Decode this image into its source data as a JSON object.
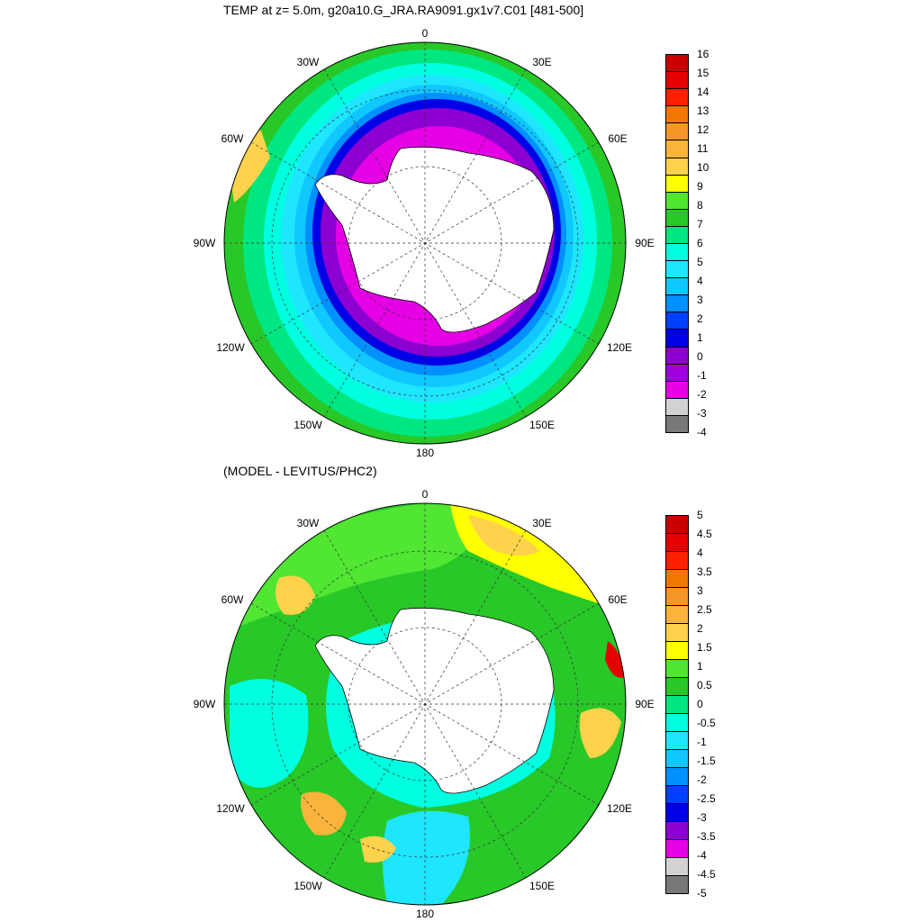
{
  "top_panel": {
    "title": "TEMP at z=   5.0m, g20a10.G_JRA.RA9091.gx1v7.C01 [481-500]",
    "lon_labels": [
      "0",
      "30E",
      "60E",
      "90E",
      "120E",
      "150E",
      "180",
      "150W",
      "120W",
      "90W",
      "60W",
      "30W"
    ],
    "colorbar": {
      "labels": [
        "16",
        "15",
        "14",
        "13",
        "12",
        "11",
        "10",
        "9",
        "8",
        "7",
        "6",
        "5",
        "4",
        "3",
        "2",
        "1",
        "0",
        "-1",
        "-2",
        "-3",
        "-4"
      ],
      "colors": [
        "#c80000",
        "#e60000",
        "#ff2000",
        "#f07800",
        "#f59628",
        "#fab43c",
        "#ffd24b",
        "#ffff00",
        "#50e632",
        "#28c828",
        "#00e680",
        "#00ffe0",
        "#1ee6ff",
        "#10c8ff",
        "#0090ff",
        "#0040ff",
        "#0000e6",
        "#8c00d2",
        "#a000dc",
        "#e600e6",
        "#d2d2d2",
        "#787878"
      ]
    }
  },
  "bottom_panel": {
    "title": "(MODEL - LEVITUS/PHC2)",
    "lon_labels": [
      "0",
      "30E",
      "60E",
      "90E",
      "120E",
      "150E",
      "180",
      "150W",
      "120W",
      "90W",
      "60W",
      "30W"
    ],
    "colorbar": {
      "labels": [
        "5",
        "4.5",
        "4",
        "3.5",
        "3",
        "2.5",
        "2",
        "1.5",
        "1",
        "0.5",
        "0",
        "-0.5",
        "-1",
        "-1.5",
        "-2",
        "-2.5",
        "-3",
        "-3.5",
        "-4",
        "-4.5",
        "-5"
      ],
      "colors": [
        "#c80000",
        "#e60000",
        "#ff2000",
        "#f07800",
        "#f59628",
        "#fab43c",
        "#ffd24b",
        "#ffff00",
        "#50e632",
        "#28c828",
        "#00e680",
        "#00ffe0",
        "#1ee6ff",
        "#10c8ff",
        "#0090ff",
        "#0040ff",
        "#0000e6",
        "#8c00d2",
        "#e600e6",
        "#d2d2d2",
        "#787878"
      ]
    }
  }
}
